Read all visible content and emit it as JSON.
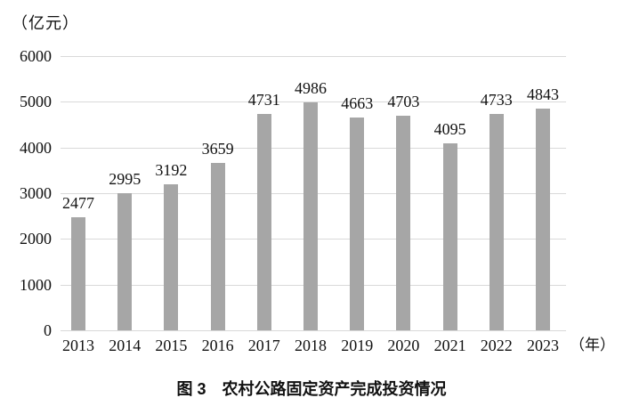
{
  "unit_label": "（亿元）",
  "x_unit_label": "（年）",
  "caption": "图 3　农村公路固定资产完成投资情况",
  "colors": {
    "bar": "#a6a6a6",
    "grid": "#d9d9d9",
    "text": "#111111"
  },
  "chart_data": {
    "type": "bar",
    "title": "图 3 农村公路固定资产完成投资情况",
    "categories": [
      "2013",
      "2014",
      "2015",
      "2016",
      "2017",
      "2018",
      "2019",
      "2020",
      "2021",
      "2022",
      "2023"
    ],
    "values": [
      2477,
      2995,
      3192,
      3659,
      4731,
      4986,
      4663,
      4703,
      4095,
      4733,
      4843
    ],
    "xlabel": "（年）",
    "ylabel": "（亿元）",
    "ylim": [
      0,
      6000
    ],
    "yticks": [
      0,
      1000,
      2000,
      3000,
      4000,
      5000,
      6000
    ],
    "grid": true,
    "legend": "none",
    "data_labels": true
  }
}
